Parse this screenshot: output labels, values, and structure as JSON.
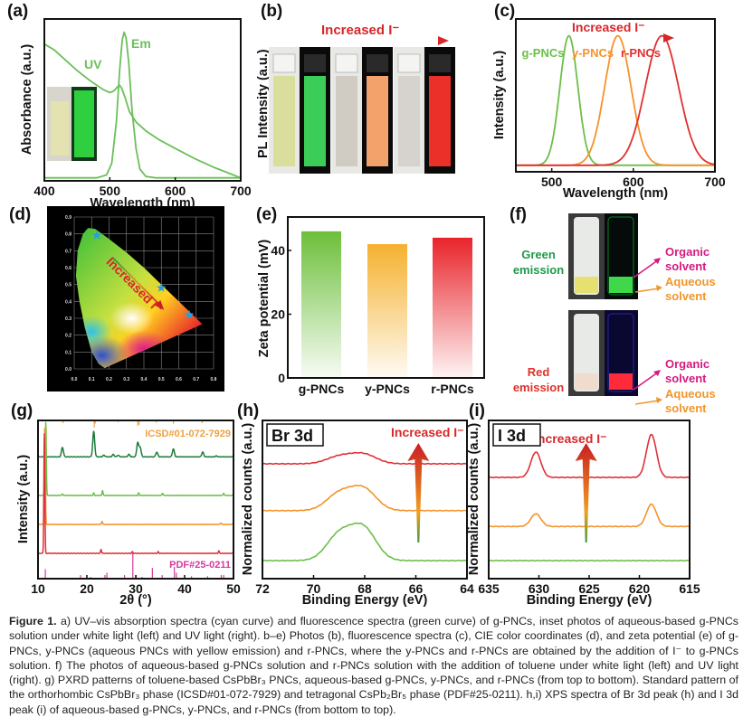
{
  "panel_labels": [
    "(a)",
    "(b)",
    "(c)",
    "(d)",
    "(e)",
    "(f)",
    "(g)",
    "(h)",
    "(i)"
  ],
  "increased_label": "Increased I⁻",
  "caption": {
    "title": "Figure 1.",
    "text": "a) UV–vis absorption spectra (cyan curve) and fluorescence spectra (green curve) of g-PNCs, inset photos of aqueous-based g-PNCs solution under white light (left) and UV light (right). b–e) Photos (b), fluorescence spectra (c), CIE color coordinates (d), and zeta potential (e) of g-PNCs, y-PNCs (aqueous PNCs with yellow emission) and r-PNCs, where the y-PNCs and r-PNCs are obtained by the addition of I⁻ to g-PNCs solution. f) The photos of aqueous-based g-PNCs solution and r-PNCs solution with the addition of toluene under white light (left) and UV light (right). g) PXRD patterns of toluene-based CsPbBr₃ PNCs, aqueous-based g-PNCs, y-PNCs, and r-PNCs (from top to bottom). Standard pattern of the orthorhombic CsPbBr₃ phase (ICSD#01-072-7929) and tetragonal CsPb₂Br₅ phase (PDF#25-0211). h,i) XPS spectra of Br 3d peak (h) and I 3d peak (i) of aqueous-based g-PNCs, y-PNCs, and r-PNCs (from bottom to top)."
  },
  "panel_b": {
    "ylabel": "PL Intensity (a.u.)"
  },
  "panel_f": {
    "groups": [
      {
        "label_1": "Green",
        "label_2": "emission",
        "color": "#1e9a4a"
      },
      {
        "label_1": "Red",
        "label_2": "emission",
        "color": "#e0302a"
      }
    ],
    "organic_1": "Organic",
    "organic_2": "solvent",
    "organic_color": "#d6197f",
    "aqueous_1": "Aqueous",
    "aqueous_2": "solvent",
    "aqueous_color": "#f0962a"
  },
  "chart_data": [
    {
      "panel": "a",
      "type": "line",
      "xlabel": "Wavelength (nm)",
      "ylabel": "Absorbance (a.u.)",
      "xlim": [
        400,
        700
      ],
      "ylim": [
        0,
        1.1
      ],
      "xticks": [
        "400",
        "500",
        "600",
        "700"
      ],
      "xtick_values": [
        400,
        500,
        600,
        700
      ],
      "annotations": [
        "UV",
        "Em"
      ],
      "series": [
        {
          "name": "UV",
          "color": "#6cbf5a",
          "x": [
            400,
            415,
            430,
            450,
            470,
            490,
            500,
            506,
            512,
            515,
            518,
            523,
            530,
            540,
            555,
            575,
            600,
            630,
            660,
            700
          ],
          "y": [
            0.93,
            0.89,
            0.83,
            0.75,
            0.68,
            0.62,
            0.6,
            0.61,
            0.64,
            0.65,
            0.63,
            0.57,
            0.47,
            0.4,
            0.34,
            0.28,
            0.22,
            0.15,
            0.09,
            0.02
          ]
        },
        {
          "name": "Em",
          "color": "#6cbf5a",
          "x": [
            400,
            480,
            495,
            503,
            510,
            515,
            519,
            522,
            525,
            529,
            534,
            540,
            546,
            555,
            570,
            700
          ],
          "y": [
            0.02,
            0.02,
            0.04,
            0.12,
            0.4,
            0.75,
            0.96,
            1.01,
            0.97,
            0.8,
            0.48,
            0.22,
            0.08,
            0.03,
            0.02,
            0.02
          ]
        }
      ]
    },
    {
      "panel": "c",
      "type": "line",
      "xlabel": "Wavelength (nm)",
      "ylabel": "Intensity (a.u.)",
      "xlim": [
        456,
        700
      ],
      "ylim": [
        0,
        1.18
      ],
      "xticks": [
        "500",
        "600",
        "700"
      ],
      "xtick_values": [
        500,
        600,
        700
      ],
      "series": [
        {
          "name": "g-PNCs",
          "color": "#6cbf4a",
          "center": 521,
          "fwhm": 26,
          "baseline": 0.05
        },
        {
          "name": "y-PNCs",
          "color": "#f5922a",
          "center": 581,
          "fwhm": 38,
          "baseline": 0.05
        },
        {
          "name": "r-PNCs",
          "color": "#e03030",
          "center": 635,
          "fwhm": 48,
          "baseline": 0.05
        }
      ]
    },
    {
      "panel": "d",
      "type": "scatter",
      "title": "CIE color coordinates",
      "xlim": [
        0,
        0.8
      ],
      "ylim": [
        0,
        0.9
      ],
      "xticks": [
        "0.0",
        "0.1",
        "0.2",
        "0.3",
        "0.4",
        "0.5",
        "0.6",
        "0.7",
        "0.8"
      ],
      "yticks": [
        "0.0",
        "0.1",
        "0.2",
        "0.3",
        "0.4",
        "0.5",
        "0.6",
        "0.7",
        "0.8",
        "0.9"
      ],
      "points": [
        {
          "name": "g-PNCs",
          "x": 0.13,
          "y": 0.79
        },
        {
          "name": "y-PNCs",
          "x": 0.5,
          "y": 0.48
        },
        {
          "name": "r-PNCs",
          "x": 0.66,
          "y": 0.32
        }
      ],
      "star_color": "#2a9fe0"
    },
    {
      "panel": "e",
      "type": "bar",
      "ylabel": "Zeta potential (mV)",
      "categories": [
        "g-PNCs",
        "y-PNCs",
        "r-PNCs"
      ],
      "values": [
        46,
        42,
        44
      ],
      "colors": [
        "#6cbf3a",
        "#f5b12e",
        "#e8242a"
      ],
      "ylim": [
        0,
        50.5
      ],
      "yticks": [
        "0",
        "20",
        "40"
      ],
      "ytick_values": [
        0,
        20,
        40
      ]
    },
    {
      "panel": "g",
      "type": "line",
      "xlabel": "2θ (°)",
      "ylabel": "Intensity (a.u.)",
      "xlim": [
        10,
        50
      ],
      "ylim": [
        0,
        10
      ],
      "xticks": [
        "10",
        "20",
        "30",
        "40",
        "50"
      ],
      "xtick_values": [
        10,
        20,
        30,
        40,
        50
      ],
      "references": [
        {
          "name": "ICSD#01-072-7929",
          "color": "#f0a040",
          "direction": "down",
          "sticks": [
            [
              15.1,
              0.5
            ],
            [
              21.5,
              1.3
            ],
            [
              21.7,
              0.6
            ],
            [
              26.4,
              0.3
            ],
            [
              28.6,
              0.2
            ],
            [
              30.4,
              1.0
            ],
            [
              30.7,
              0.8
            ],
            [
              34.2,
              0.4
            ],
            [
              37.7,
              0.6
            ],
            [
              43.6,
              0.5
            ],
            [
              46.5,
              0.2
            ]
          ]
        },
        {
          "name": "PDF#25-0211",
          "color": "#d63aa0",
          "direction": "up",
          "sticks": [
            [
              11.5,
              0.8
            ],
            [
              18.7,
              0.3
            ],
            [
              20.8,
              0.15
            ],
            [
              23.7,
              0.3
            ],
            [
              24.1,
              0.5
            ],
            [
              27.7,
              0.3
            ],
            [
              29.4,
              2.3
            ],
            [
              30.1,
              0.3
            ],
            [
              31.3,
              0.15
            ],
            [
              33.4,
              0.9
            ],
            [
              35.4,
              0.3
            ],
            [
              37.9,
              1.0
            ],
            [
              38.3,
              0.5
            ],
            [
              41.4,
              0.2
            ],
            [
              44.7,
              0.2
            ],
            [
              47.5,
              0.3
            ],
            [
              48.0,
              0.3
            ]
          ]
        }
      ],
      "series": [
        {
          "name": "toluene CsPbBr3 PNCs",
          "color": "#1e7a3a",
          "offset": 7.7,
          "sigma": 0.2,
          "peaks": [
            [
              15,
              0.6
            ],
            [
              21.4,
              1.6
            ],
            [
              23.5,
              0.1
            ],
            [
              25.4,
              0.15
            ],
            [
              26.4,
              0.1
            ],
            [
              28.6,
              0.15
            ],
            [
              30.4,
              0.9
            ],
            [
              30.9,
              0.6
            ],
            [
              34.3,
              0.3
            ],
            [
              37.7,
              0.5
            ],
            [
              43.7,
              0.3
            ],
            [
              46.5,
              0.05
            ]
          ]
        },
        {
          "name": "g-PNCs",
          "color": "#6cbf4a",
          "offset": 5.26,
          "sigma": 0.1,
          "peaks": [
            [
              11.6,
              4.6
            ],
            [
              15,
              0.1
            ],
            [
              21.4,
              0.15
            ],
            [
              23.2,
              0.3
            ],
            [
              30.6,
              0.15
            ],
            [
              35.5,
              0.15
            ],
            [
              48,
              0.15
            ]
          ]
        },
        {
          "name": "y-PNCs",
          "color": "#f5922a",
          "offset": 3.43,
          "sigma": 0.1,
          "peaks": [
            [
              11.4,
              6.2
            ],
            [
              23.1,
              0.2
            ],
            [
              47.4,
              0.1
            ]
          ]
        },
        {
          "name": "r-PNCs",
          "color": "#e03038",
          "offset": 1.6,
          "sigma": 0.1,
          "peaks": [
            [
              11.3,
              7.6
            ],
            [
              22.9,
              0.25
            ],
            [
              29.3,
              0.1
            ],
            [
              34.6,
              0.1
            ],
            [
              47,
              0.15
            ]
          ]
        }
      ]
    },
    {
      "panel": "h",
      "type": "line",
      "title": "Br 3d",
      "xlabel": "Binding Energy (eV)",
      "ylabel": "Normalized counts (a.u.)",
      "xlim": [
        72,
        64
      ],
      "ylim": [
        0,
        10
      ],
      "xticks": [
        "72",
        "70",
        "68",
        "66",
        "64"
      ],
      "xtick_values": [
        72,
        70,
        68,
        66,
        64
      ],
      "arrow_x": 65.9,
      "series": [
        {
          "name": "g-PNCs",
          "color": "#6cbf4a",
          "offset": 1.14,
          "sigma": 0.5,
          "peaks": [
            [
              68.05,
              2.0
            ],
            [
              69.0,
              1.6
            ]
          ]
        },
        {
          "name": "y-PNCs",
          "color": "#f5922a",
          "offset": 4.3,
          "sigma": 0.5,
          "peaks": [
            [
              68.05,
              1.35
            ],
            [
              69.0,
              1.05
            ]
          ]
        },
        {
          "name": "r-PNCs",
          "color": "#e03038",
          "offset": 7.26,
          "sigma": 0.5,
          "peaks": [
            [
              68.05,
              0.6
            ],
            [
              69.0,
              0.45
            ]
          ]
        }
      ]
    },
    {
      "panel": "i",
      "type": "line",
      "title": "I 3d",
      "xlabel": "Binding Energy (eV)",
      "ylabel": "Normalized counts (a.u.)",
      "xlim": [
        635,
        615
      ],
      "ylim": [
        0,
        10
      ],
      "xticks": [
        "635",
        "630",
        "625",
        "620",
        "615"
      ],
      "xtick_values": [
        635,
        630,
        625,
        620,
        615
      ],
      "arrow_x": 625.3,
      "series": [
        {
          "name": "g-PNCs",
          "color": "#6cbf4a",
          "offset": 1.14,
          "sigma": 0.5,
          "peaks": []
        },
        {
          "name": "y-PNCs",
          "color": "#f5922a",
          "offset": 3.3,
          "sigma": 0.5,
          "peaks": [
            [
              630.3,
              0.8
            ],
            [
              618.8,
              1.4
            ]
          ]
        },
        {
          "name": "r-PNCs",
          "color": "#e03038",
          "offset": 6.4,
          "sigma": 0.5,
          "peaks": [
            [
              630.3,
              1.6
            ],
            [
              618.8,
              2.7
            ]
          ]
        }
      ]
    }
  ]
}
